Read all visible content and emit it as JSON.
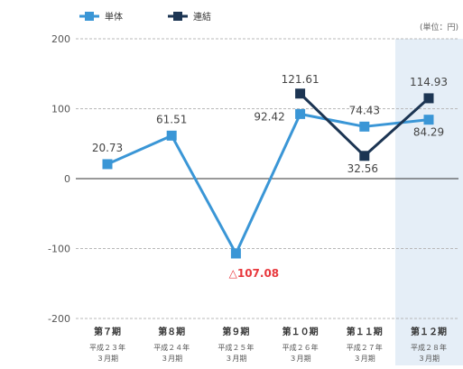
{
  "chart_data": {
    "type": "line",
    "unit_label": "(単位：円)",
    "categories": [
      {
        "period": "第７期",
        "era": "平成２３年",
        "month": "３月期"
      },
      {
        "period": "第８期",
        "era": "平成２４年",
        "month": "３月期"
      },
      {
        "period": "第９期",
        "era": "平成２５年",
        "month": "３月期"
      },
      {
        "period": "第１０期",
        "era": "平成２６年",
        "month": "３月期"
      },
      {
        "period": "第１１期",
        "era": "平成２７年",
        "month": "３月期"
      },
      {
        "period": "第１２期",
        "era": "平成２８年",
        "month": "３月期"
      }
    ],
    "highlight_index": 5,
    "ylim": [
      -200,
      200
    ],
    "yticks": [
      200,
      100,
      0,
      -100,
      -200
    ],
    "grid": true,
    "legend_placement": "top-left",
    "series": [
      {
        "name": "単体",
        "color": "#3a96d6",
        "marker": "square",
        "values": [
          20.73,
          61.51,
          -107.08,
          92.42,
          74.43,
          84.29
        ],
        "labels": [
          "20.73",
          "61.51",
          "△107.08",
          "92.42",
          "74.43",
          "84.29"
        ]
      },
      {
        "name": "連結",
        "color": "#1c3553",
        "marker": "square",
        "values": [
          null,
          null,
          null,
          121.61,
          32.56,
          114.93
        ],
        "labels": [
          null,
          null,
          null,
          "121.61",
          "32.56",
          "114.93"
        ]
      }
    ],
    "negative_label_color": "#e8383d"
  }
}
